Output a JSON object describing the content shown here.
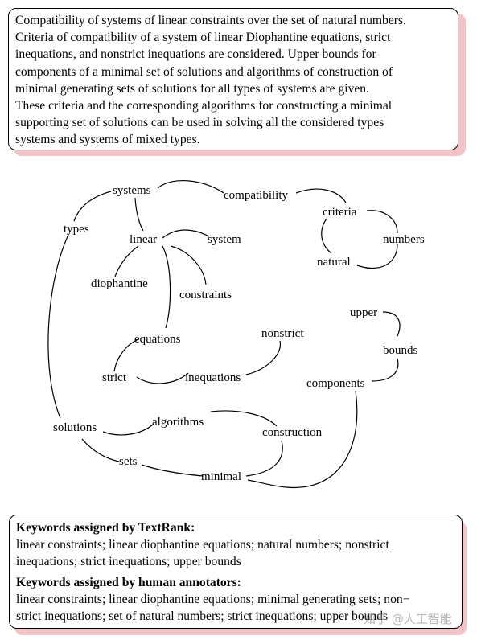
{
  "abstract": {
    "lines": [
      "Compatibility of systems of linear constraints over the set of natural numbers.",
      "Criteria of compatibility of a system of linear Diophantine equations, strict",
      "inequations, and nonstrict inequations are considered. Upper bounds for",
      "components of a minimal set of solutions and algorithms of construction of",
      "minimal generating sets of solutions for all types of systems are given.",
      "These criteria and the corresponding algorithms for constructing a minimal",
      "supporting set of solutions can be used in solving all the considered  types",
      "systems and systems of mixed types."
    ]
  },
  "graph": {
    "nodes": {
      "systems": "systems",
      "compatibility": "compatibility",
      "types": "types",
      "criteria": "criteria",
      "linear": "linear",
      "system": "system",
      "numbers": "numbers",
      "natural": "natural",
      "diophantine": "diophantine",
      "constraints": "constraints",
      "upper": "upper",
      "nonstrict": "nonstrict",
      "equations": "equations",
      "bounds": "bounds",
      "strict": "strict",
      "inequations": "inequations",
      "components": "components",
      "algorithms": "algorithms",
      "solutions": "solutions",
      "construction": "construction",
      "sets": "sets",
      "minimal": "minimal"
    }
  },
  "keywords": {
    "textrank_heading": "Keywords assigned by TextRank:",
    "textrank_lines": [
      "linear constraints; linear diophantine equations; natural numbers; nonstrict",
      "inequations; strict inequations; upper bounds"
    ],
    "human_heading": "Keywords assigned by human annotators:",
    "human_lines": [
      "linear constraints; linear diophantine equations; minimal generating sets;  non−",
      "strict inequations; set of natural numbers; strict inequations; upper bounds"
    ]
  },
  "watermark": "知乎 @人工智能"
}
